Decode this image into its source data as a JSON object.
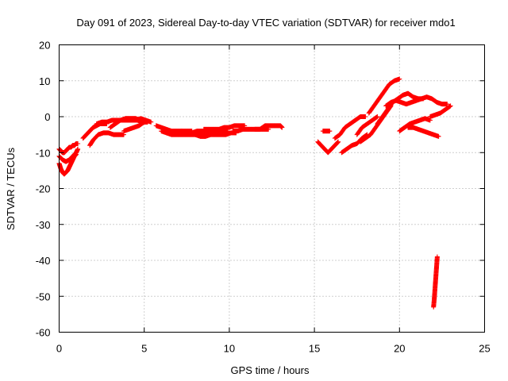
{
  "chart_data": {
    "type": "scatter",
    "title": "Day 091 of 2023, Sidereal Day-to-day VTEC variation (SDTVAR) for receiver mdo1",
    "xlabel": "GPS time / hours",
    "ylabel": "SDTVAR / TECUs",
    "xlim": [
      0,
      25
    ],
    "ylim": [
      -60,
      20
    ],
    "xticks": [
      0,
      5,
      10,
      15,
      20,
      25
    ],
    "yticks": [
      20,
      10,
      0,
      -10,
      -20,
      -30,
      -40,
      -50,
      -60
    ],
    "grid": true,
    "marker": "+",
    "series": [
      {
        "name": "mdo1",
        "color": "#ff0000",
        "segments": [
          {
            "x": [
              0.0,
              0.1,
              0.2,
              0.3,
              0.4,
              0.5,
              0.6,
              0.7,
              0.8,
              0.9,
              1.0
            ],
            "y": [
              -13,
              -14.5,
              -15.5,
              -16,
              -15.5,
              -15,
              -14,
              -13,
              -12,
              -11,
              -10.5
            ]
          },
          {
            "x": [
              0.0,
              0.2,
              0.4,
              0.6,
              0.8,
              1.0,
              1.1
            ],
            "y": [
              -11,
              -12,
              -12.5,
              -12,
              -11,
              -10,
              -9
            ]
          },
          {
            "x": [
              0.0,
              0.1,
              0.2,
              0.3,
              0.4,
              0.5,
              0.6,
              0.7,
              0.8,
              0.9,
              1.0,
              1.1
            ],
            "y": [
              -9,
              -9.5,
              -10,
              -10,
              -9.5,
              -9,
              -8.5,
              -8.5,
              -8,
              -8,
              -7.5,
              -7.5
            ]
          },
          {
            "x": [
              1.4,
              1.6,
              1.8,
              2.0,
              2.2,
              2.4,
              2.6,
              2.8
            ],
            "y": [
              -6,
              -5,
              -4,
              -3,
              -2.5,
              -2,
              -2,
              -2
            ]
          },
          {
            "x": [
              1.8,
              2.0,
              2.3,
              2.6,
              2.9,
              3.2,
              3.5,
              3.8
            ],
            "y": [
              -8,
              -6.5,
              -5,
              -4.5,
              -4.5,
              -5,
              -5,
              -5
            ]
          },
          {
            "x": [
              2.2,
              2.5,
              2.8,
              3.1,
              3.4,
              3.7,
              4.0,
              4.3,
              4.6,
              4.9
            ],
            "y": [
              -2,
              -1.5,
              -1.5,
              -1,
              -1,
              -1,
              -1,
              -1,
              -1,
              -1.5
            ]
          },
          {
            "x": [
              3.0,
              3.3,
              3.6,
              3.9,
              4.2,
              4.5,
              4.8,
              5.0
            ],
            "y": [
              -3,
              -2,
              -1,
              -0.5,
              -0.5,
              -0.5,
              -1,
              -1.5
            ]
          },
          {
            "x": [
              3.8,
              4.1,
              4.4,
              4.7,
              5.0,
              5.2
            ],
            "y": [
              -4,
              -3.5,
              -3,
              -2.5,
              -1.5,
              -1.5
            ]
          },
          {
            "x": [
              4.5,
              4.8,
              5.1,
              5.4
            ],
            "y": [
              -1,
              -0.5,
              -1,
              -1.5
            ]
          },
          {
            "x": [
              5.7,
              6.0,
              6.3,
              6.6,
              6.9,
              7.2,
              7.5,
              7.8
            ],
            "y": [
              -2.5,
              -3,
              -3.5,
              -4,
              -4,
              -4,
              -4,
              -4
            ]
          },
          {
            "x": [
              6.0,
              6.3,
              6.6,
              6.9,
              7.2,
              7.5,
              7.8,
              8.1,
              8.4,
              8.7
            ],
            "y": [
              -4,
              -4.5,
              -5,
              -5,
              -5,
              -5,
              -5,
              -5,
              -5,
              -5
            ]
          },
          {
            "x": [
              7.2,
              7.5,
              7.8,
              8.1,
              8.4,
              8.7,
              9.0,
              9.3,
              9.6,
              9.9
            ],
            "y": [
              -4,
              -4.5,
              -4.5,
              -4,
              -4,
              -4,
              -4,
              -4,
              -4,
              -4
            ]
          },
          {
            "x": [
              8.0,
              8.3,
              8.6,
              8.9,
              9.2,
              9.5,
              9.8,
              10.1,
              10.4
            ],
            "y": [
              -5,
              -5.5,
              -5.5,
              -5,
              -5,
              -5,
              -5,
              -4.5,
              -4.5
            ]
          },
          {
            "x": [
              8.5,
              8.8,
              9.1,
              9.4,
              9.7,
              10.0,
              10.3,
              10.6,
              10.9
            ],
            "y": [
              -3.5,
              -3.5,
              -3.5,
              -3.5,
              -3,
              -3,
              -2.5,
              -2.5,
              -2.5
            ]
          },
          {
            "x": [
              10.2,
              10.5,
              10.8,
              11.1,
              11.4,
              11.7,
              12.0,
              12.3
            ],
            "y": [
              -4,
              -4,
              -3.5,
              -3.5,
              -3.5,
              -3.5,
              -3.5,
              -3.5
            ]
          },
          {
            "x": [
              11.5,
              11.8,
              12.1,
              12.4,
              12.7,
              13.0,
              13.1
            ],
            "y": [
              -3.5,
              -3.5,
              -2.5,
              -2.5,
              -2.5,
              -2.5,
              -3
            ]
          },
          {
            "x": [
              15.2,
              15.4,
              15.6,
              15.8,
              16.0,
              16.2,
              16.4
            ],
            "y": [
              -7,
              -8,
              -9,
              -10,
              -9,
              -8,
              -7
            ]
          },
          {
            "x": [
              15.5,
              15.7,
              15.9
            ],
            "y": [
              -4,
              -4,
              -4
            ]
          },
          {
            "x": [
              16.2,
              16.5,
              16.8,
              17.1,
              17.4,
              17.7,
              18.0
            ],
            "y": [
              -6,
              -5,
              -3,
              -2,
              -1,
              0,
              0
            ]
          },
          {
            "x": [
              16.6,
              16.9,
              17.2,
              17.5,
              17.8,
              18.1
            ],
            "y": [
              -10,
              -9,
              -8,
              -7.5,
              -6,
              -5
            ]
          },
          {
            "x": [
              17.5,
              17.8,
              18.1,
              18.4,
              18.7
            ],
            "y": [
              -5,
              -3,
              -2,
              -1,
              0
            ]
          },
          {
            "x": [
              17.7,
              18.0,
              18.3,
              18.6,
              18.9,
              19.2,
              19.5
            ],
            "y": [
              -7,
              -6,
              -5,
              -3,
              -1,
              1,
              3
            ]
          },
          {
            "x": [
              18.2,
              18.5,
              18.8,
              19.1,
              19.4,
              19.7,
              20.0
            ],
            "y": [
              1,
              3,
              5,
              7,
              9,
              10,
              10.5
            ]
          },
          {
            "x": [
              18.7,
              19.0,
              19.3,
              19.6,
              19.9,
              20.2,
              20.5,
              20.8,
              21.1,
              21.4
            ],
            "y": [
              -2,
              0,
              2,
              4,
              5,
              6,
              6.5,
              5.5,
              5,
              5
            ]
          },
          {
            "x": [
              19.2,
              19.5,
              19.8,
              20.1,
              20.4,
              20.7,
              21.0,
              21.3,
              21.6,
              21.9,
              22.2,
              22.5,
              22.8
            ],
            "y": [
              3,
              4,
              4.5,
              4,
              3.5,
              4,
              4.5,
              5,
              5.5,
              5,
              4,
              3.5,
              3.5
            ]
          },
          {
            "x": [
              20.5,
              20.8,
              21.1,
              21.4,
              21.7,
              22.0,
              22.3
            ],
            "y": [
              -3,
              -3,
              -3.5,
              -4,
              -4.5,
              -5,
              -5.5
            ]
          },
          {
            "x": [
              20.0,
              20.3,
              20.6,
              20.9,
              21.2,
              21.5,
              21.8
            ],
            "y": [
              -4,
              -3,
              -2,
              -1.5,
              -1,
              -0.5,
              -1
            ]
          },
          {
            "x": [
              21.8,
              22.1,
              22.4,
              22.7,
              23.0
            ],
            "y": [
              0,
              0.5,
              1,
              2,
              3
            ]
          },
          {
            "x": [
              22.0,
              22.04,
              22.07,
              22.1,
              22.13,
              22.16,
              22.19,
              22.22
            ],
            "y": [
              -53,
              -51,
              -49,
              -47,
              -45,
              -43,
              -41,
              -39
            ]
          }
        ]
      }
    ]
  }
}
